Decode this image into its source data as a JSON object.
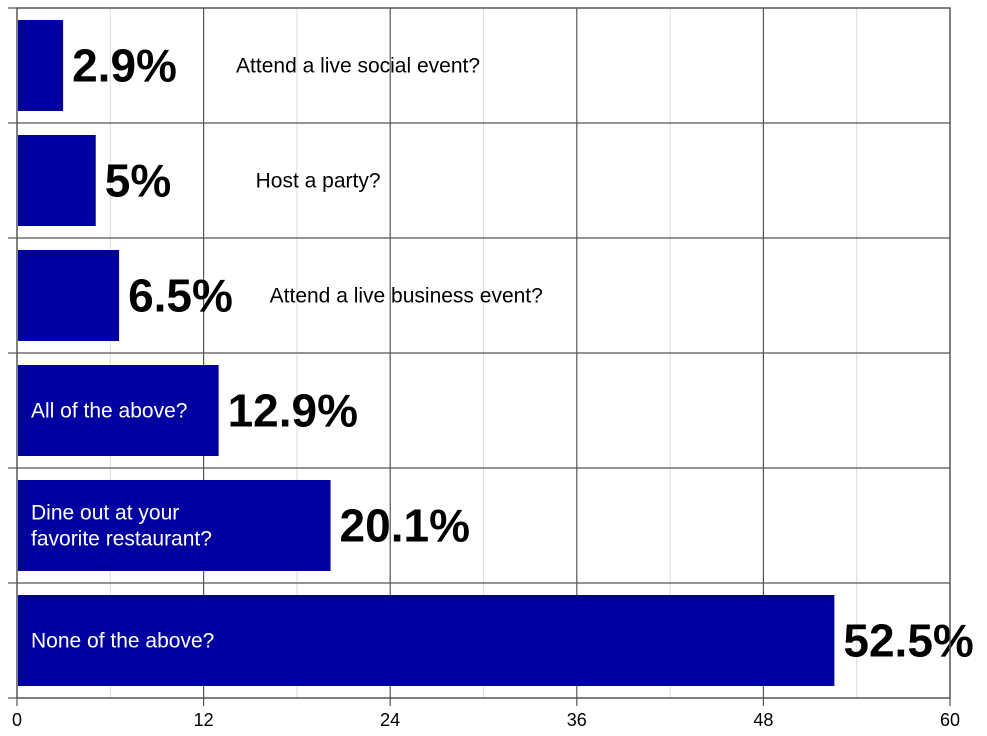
{
  "chart_data": {
    "type": "bar",
    "orientation": "horizontal",
    "categories": [
      "Attend a live social event?",
      "Host a party?",
      "Attend a live business event?",
      "All of the above?",
      "Dine out at your favorite restaurant?",
      "None of the above?"
    ],
    "category_lines": [
      [
        "Attend a live social event?"
      ],
      [
        "Host a party?"
      ],
      [
        "Attend a live business event?"
      ],
      [
        "All of the above?"
      ],
      [
        "Dine out at your",
        "favorite restaurant?"
      ],
      [
        "None of the above?"
      ]
    ],
    "values": [
      2.9,
      5,
      6.5,
      12.9,
      20.1,
      52.5
    ],
    "value_labels": [
      "2.9%",
      "5%",
      "6.5%",
      "12.9%",
      "20.1%",
      "52.5%"
    ],
    "xlim": [
      0,
      60
    ],
    "xticks": [
      0,
      12,
      24,
      36,
      48,
      60
    ],
    "minor_gridlines": [
      6,
      18,
      30,
      42,
      54
    ],
    "grid": true,
    "bar_color": "#0000a0",
    "title": "",
    "xlabel": "",
    "ylabel": ""
  }
}
